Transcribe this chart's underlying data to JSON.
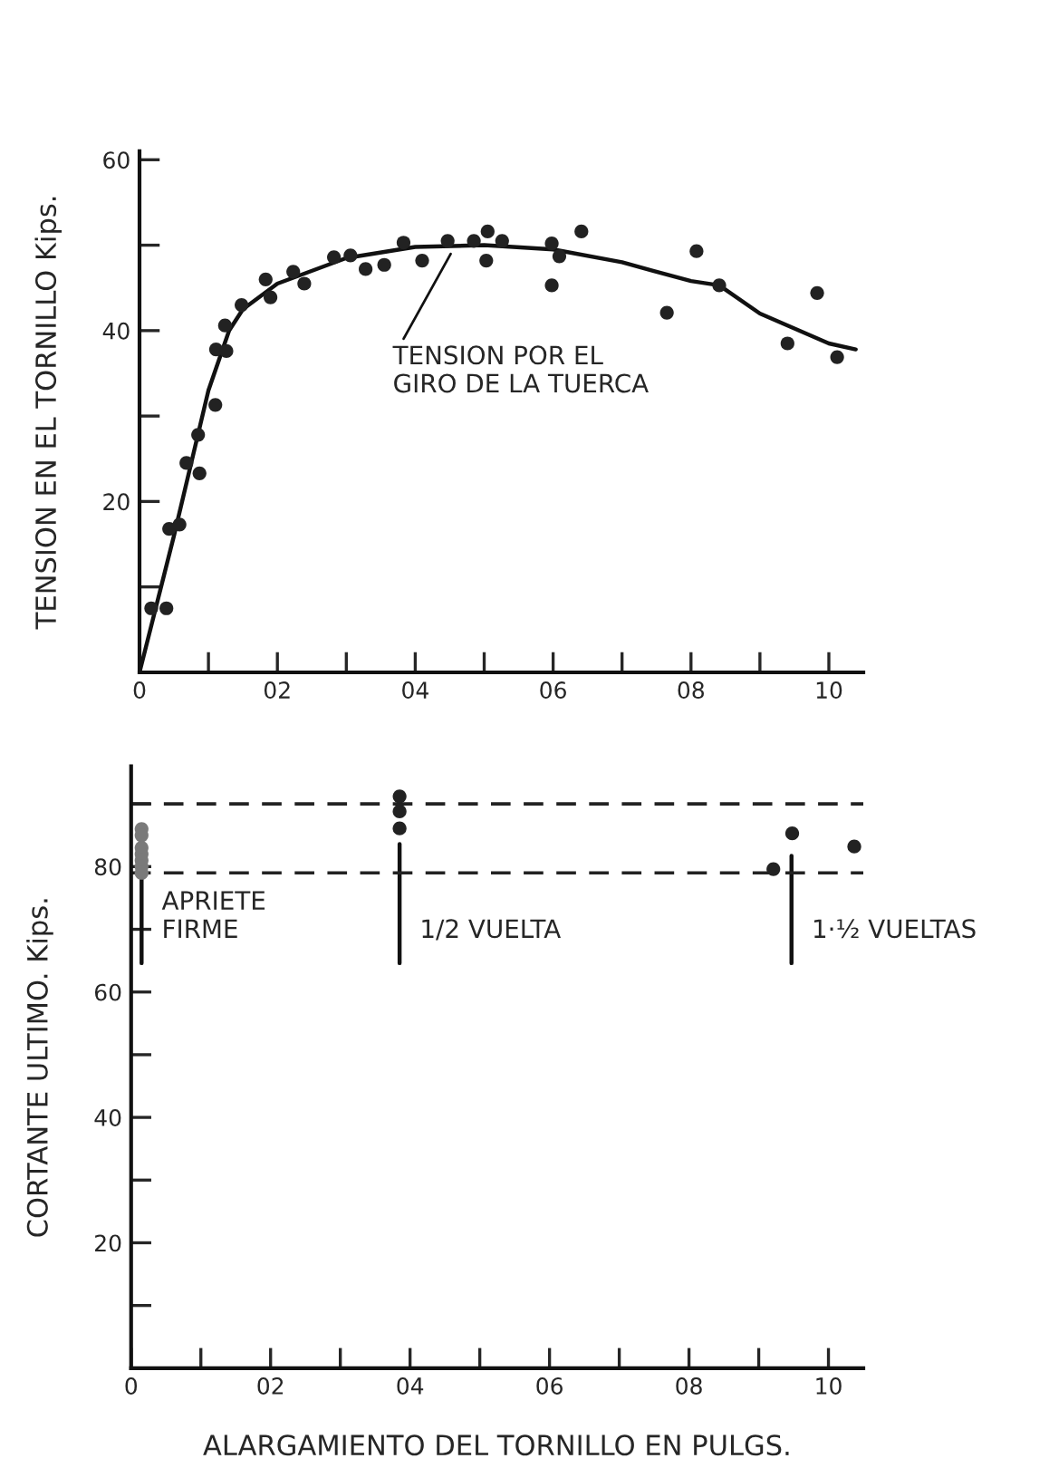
{
  "chart_data": [
    {
      "type": "scatter",
      "ylabel": "TENSION EN EL TORNILLO Kips.",
      "xlim": [
        0,
        10.5
      ],
      "ylim": [
        0,
        61
      ],
      "xticks": [
        0,
        {
          "value": 1,
          "label": null
        },
        {
          "value": 2,
          "label": "02"
        },
        {
          "value": 3,
          "label": null
        },
        {
          "value": 4,
          "label": "04"
        },
        {
          "value": 5,
          "label": null
        },
        {
          "value": 6,
          "label": "06"
        },
        {
          "value": 7,
          "label": null
        },
        {
          "value": 8,
          "label": "08"
        },
        {
          "value": 9,
          "label": null
        },
        10
      ],
      "yticks": [
        {
          "value": 10,
          "label": null
        },
        20,
        {
          "value": 30,
          "label": null
        },
        40,
        {
          "value": 50,
          "label": null
        },
        60
      ],
      "grid": false,
      "legend": false,
      "marker": "circle",
      "series": [
        {
          "type": "scatter",
          "color": "#222222",
          "x": [
            0.17,
            0.39,
            0.43,
            0.58,
            0.68,
            0.87,
            0.85,
            1.1,
            1.11,
            1.26,
            1.24,
            1.48,
            1.83,
            1.9,
            2.23,
            2.39,
            2.82,
            3.06,
            3.28,
            3.55,
            3.83,
            4.1,
            4.47,
            4.85,
            5.05,
            5.26,
            5.03,
            5.98,
            5.98,
            6.09,
            6.41,
            8.08,
            8.41,
            7.65,
            9.4,
            9.83,
            10.12
          ],
          "values": [
            7.5,
            7.5,
            16.8,
            17.3,
            24.5,
            23.3,
            27.8,
            31.3,
            37.8,
            37.6,
            40.6,
            43,
            46,
            43.9,
            46.9,
            45.5,
            48.6,
            48.8,
            47.2,
            47.7,
            50.3,
            48.2,
            50.5,
            50.5,
            51.6,
            50.5,
            48.2,
            50.2,
            45.3,
            48.7,
            51.6,
            49.3,
            45.3,
            42.1,
            38.5,
            44.4,
            36.9
          ]
        },
        {
          "type": "line",
          "marker": "none",
          "color": "#111111",
          "x": [
            0,
            0.5,
            1,
            1.3,
            1.5,
            2,
            3,
            4,
            5,
            6,
            7,
            7.45,
            8,
            8.41,
            9,
            10,
            10.39
          ],
          "values": [
            0,
            16,
            33,
            40,
            42.5,
            45.5,
            48.5,
            49.8,
            50,
            49.5,
            48,
            47,
            45.8,
            45.3,
            42,
            38.5,
            37.8
          ]
        }
      ],
      "annotations": [
        {
          "text": "TENSION POR EL\nGIRO DE LA TUERCA",
          "x": 4.55,
          "y": 49.5
        }
      ]
    },
    {
      "type": "scatter",
      "xlabel": "ALARGAMIENTO DEL TORNILLO EN PULGS.",
      "ylabel": "CORTANTE ULTIMO. Kips.",
      "xlim": [
        0,
        10.5
      ],
      "ylim": [
        0,
        96
      ],
      "xticks": [
        0,
        {
          "value": 1,
          "label": null
        },
        {
          "value": 2,
          "label": "02"
        },
        {
          "value": 3,
          "label": null
        },
        {
          "value": 4,
          "label": "04"
        },
        {
          "value": 5,
          "label": null
        },
        {
          "value": 6,
          "label": "06"
        },
        {
          "value": 7,
          "label": null
        },
        {
          "value": 8,
          "label": "08"
        },
        {
          "value": 9,
          "label": null
        },
        10
      ],
      "yticks": [
        {
          "value": 10,
          "label": null
        },
        20,
        {
          "value": 30,
          "label": null
        },
        40,
        {
          "value": 50,
          "label": null
        },
        60,
        {
          "value": 70,
          "label": null
        },
        80,
        {
          "value": 90,
          "label": null
        }
      ],
      "grid": false,
      "legend": false,
      "marker": "circle",
      "series": [
        {
          "type": "scatter",
          "color": "#7a7a7a",
          "x": [
            0.15,
            0.15,
            0.15,
            0.15,
            0.15,
            0.15,
            0.15
          ],
          "values": [
            86,
            85,
            83,
            82,
            81,
            80,
            79
          ]
        },
        {
          "type": "scatter",
          "color": "#222222",
          "x": [
            3.85,
            3.85,
            3.85,
            9.21,
            9.48,
            10.37
          ],
          "values": [
            91.2,
            88.8,
            86.1,
            79.6,
            85.3,
            83.2
          ]
        },
        {
          "type": "line",
          "marker": "none",
          "color": "#111111",
          "x": [
            0.15,
            0.15
          ],
          "values": [
            79,
            64.6
          ]
        },
        {
          "type": "line",
          "marker": "none",
          "color": "#111111",
          "x": [
            3.85,
            3.85
          ],
          "values": [
            83.6,
            64.6
          ]
        },
        {
          "type": "line",
          "marker": "none",
          "color": "#111111",
          "x": [
            9.47,
            9.47
          ],
          "values": [
            81.7,
            64.6
          ]
        }
      ],
      "ref_lines": [
        {
          "axis": "y",
          "value": 90,
          "color": "#222222",
          "line_style": "dashed"
        },
        {
          "axis": "y",
          "value": 79,
          "color": "#222222",
          "line_style": "dashed"
        }
      ],
      "annotations": [
        "APRIETE\nFIRME",
        "1/2 VUELTA",
        "1·½ VUELTAS"
      ]
    }
  ]
}
